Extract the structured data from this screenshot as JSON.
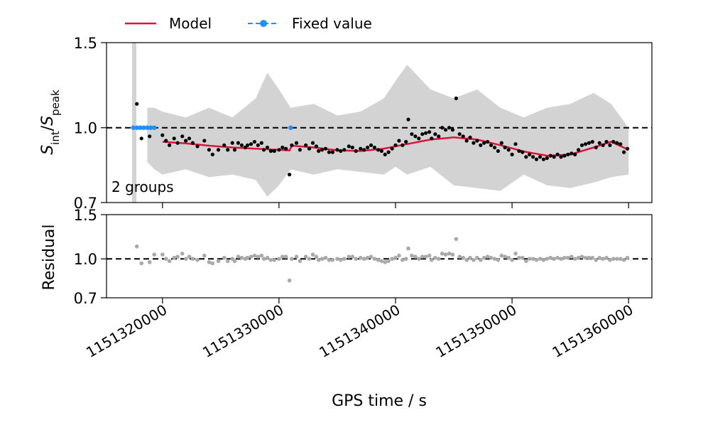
{
  "chart_data": [
    {
      "type": "scatter",
      "panel": "top",
      "title": "",
      "xlabel": "",
      "ylabel": "S_int/S_peak",
      "ylabel_parts": {
        "s1": "S",
        "sub1": "int",
        "slash": "/",
        "s2": "S",
        "sub2": "peak"
      },
      "yscale": "log",
      "ylim": [
        0.7,
        1.5
      ],
      "xlim": [
        1151315200,
        1151362000
      ],
      "yticks": [
        0.7,
        1.0,
        1.5
      ],
      "ytick_labels": [
        "0.7",
        "1.0",
        "1.5"
      ],
      "reference_line": 1.0,
      "annotation": "2 groups",
      "legend": {
        "placement": "top",
        "entries": [
          "Model",
          "Fixed value"
        ]
      },
      "colors": {
        "points": "#000000",
        "model": "#dc143c",
        "fixed": "#1e90ff",
        "band": "#d3d3d3"
      },
      "fixed_value": {
        "x": [
          1151317500,
          1151317800,
          1151318100,
          1151318400,
          1151318700,
          1151319000,
          1151319300,
          1151331000
        ],
        "y": [
          1.0,
          1.0,
          1.0,
          1.0,
          1.0,
          1.0,
          1.0,
          1.0
        ]
      },
      "model": {
        "x": [
          1151320000,
          1151322000,
          1151324000,
          1151326000,
          1151328000,
          1151330000,
          1151330900,
          1151331100,
          1151333000,
          1151335000,
          1151337000,
          1151339000,
          1151341000,
          1151343000,
          1151345000,
          1151347000,
          1151349000,
          1151351000,
          1151353000,
          1151355000,
          1151357000,
          1151358500,
          1151360000
        ],
        "y": [
          0.935,
          0.928,
          0.918,
          0.91,
          0.905,
          0.9,
          0.897,
          0.918,
          0.91,
          0.898,
          0.895,
          0.905,
          0.925,
          0.945,
          0.955,
          0.945,
          0.92,
          0.893,
          0.875,
          0.88,
          0.91,
          0.935,
          0.9
        ]
      },
      "band": {
        "x": [
          1151318700,
          1151319300,
          1151320000,
          1151322000,
          1151324000,
          1151326000,
          1151328000,
          1151329000,
          1151330000,
          1151331000,
          1151333000,
          1151335000,
          1151337000,
          1151339000,
          1151340000,
          1151341000,
          1151343000,
          1151345000,
          1151347000,
          1151349000,
          1151351000,
          1151353000,
          1151355000,
          1151357000,
          1151358500,
          1151360000
        ],
        "upper": [
          1.1,
          1.1,
          1.08,
          1.05,
          1.1,
          1.05,
          1.15,
          1.3,
          1.2,
          1.1,
          1.12,
          1.06,
          1.08,
          1.15,
          1.25,
          1.35,
          1.2,
          1.15,
          1.2,
          1.1,
          1.05,
          1.1,
          1.12,
          1.18,
          1.12,
          1.0
        ],
        "lower": [
          0.85,
          0.82,
          0.8,
          0.82,
          0.79,
          0.8,
          0.78,
          0.72,
          0.76,
          0.82,
          0.8,
          0.82,
          0.81,
          0.8,
          0.83,
          0.8,
          0.83,
          0.76,
          0.75,
          0.74,
          0.8,
          0.76,
          0.75,
          0.77,
          0.79,
          0.8
        ]
      },
      "series": [
        {
          "name": "data",
          "x": [
            1151317800,
            1151318200,
            1151318900,
            1151319300,
            1151320000,
            1151320300,
            1151320600,
            1151321000,
            1151321300,
            1151321700,
            1151322000,
            1151322300,
            1151322600,
            1151323000,
            1151323600,
            1151324000,
            1151324300,
            1151324800,
            1151325300,
            1151325600,
            1151326000,
            1151326200,
            1151326500,
            1151326800,
            1151327100,
            1151327300,
            1151327600,
            1151327900,
            1151328200,
            1151328500,
            1151328700,
            1151329000,
            1151329300,
            1151329600,
            1151330000,
            1151330300,
            1151330600,
            1151330900,
            1151331100,
            1151331500,
            1151331800,
            1151332300,
            1151332600,
            1151332900,
            1151333200,
            1151333400,
            1151333700,
            1151334000,
            1151334300,
            1151334600,
            1151335000,
            1151335300,
            1151335600,
            1151336000,
            1151336300,
            1151336600,
            1151337000,
            1151337300,
            1151337600,
            1151337900,
            1151338200,
            1151338500,
            1151338800,
            1151339100,
            1151339400,
            1151339700,
            1151340000,
            1151340300,
            1151340600,
            1151340900,
            1151341100,
            1151341400,
            1151341700,
            1151342000,
            1151342300,
            1151342600,
            1151342900,
            1151343100,
            1151343400,
            1151343700,
            1151344000,
            1151344300,
            1151344600,
            1151344900,
            1151345200,
            1151345500,
            1151345800,
            1151346100,
            1151346400,
            1151346700,
            1151347000,
            1151347300,
            1151347600,
            1151347900,
            1151348200,
            1151348500,
            1151348800,
            1151349100,
            1151349400,
            1151349700,
            1151350000,
            1151350300,
            1151350600,
            1151350900,
            1151351200,
            1151351500,
            1151351800,
            1151352100,
            1151352400,
            1151352700,
            1151353000,
            1151353300,
            1151353600,
            1151353900,
            1151354200,
            1151354500,
            1151354800,
            1151355100,
            1151355400,
            1151355700,
            1151356000,
            1151356300,
            1151356600,
            1151356900,
            1151357200,
            1151357500,
            1151357800,
            1151358100,
            1151358400,
            1151358700,
            1151359000,
            1151359300,
            1151359600,
            1151359900
          ],
          "y": [
            1.12,
            0.95,
            0.96,
            1.0,
            0.965,
            0.94,
            0.92,
            0.95,
            0.93,
            0.96,
            0.94,
            0.95,
            0.93,
            0.915,
            0.94,
            0.9,
            0.88,
            0.9,
            0.92,
            0.9,
            0.93,
            0.9,
            0.93,
            0.92,
            0.91,
            0.92,
            0.925,
            0.935,
            0.92,
            0.93,
            0.9,
            0.91,
            0.895,
            0.895,
            0.9,
            0.91,
            0.905,
            0.8,
            0.92,
            0.93,
            0.9,
            0.92,
            0.905,
            0.93,
            0.915,
            0.895,
            0.9,
            0.905,
            0.89,
            0.89,
            0.9,
            0.895,
            0.9,
            0.915,
            0.91,
            0.895,
            0.905,
            0.9,
            0.91,
            0.92,
            0.91,
            0.9,
            0.895,
            0.88,
            0.89,
            0.905,
            0.92,
            0.94,
            0.92,
            0.935,
            1.04,
            0.97,
            0.96,
            0.95,
            0.97,
            0.975,
            0.98,
            0.95,
            0.97,
            0.96,
            1.0,
            0.99,
            1.0,
            0.99,
            1.15,
            0.97,
            0.96,
            0.94,
            0.955,
            0.93,
            0.94,
            0.92,
            0.93,
            0.935,
            0.92,
            0.91,
            0.895,
            0.93,
            0.91,
            0.9,
            0.88,
            0.925,
            0.895,
            0.89,
            0.87,
            0.88,
            0.87,
            0.86,
            0.87,
            0.86,
            0.865,
            0.875,
            0.87,
            0.88,
            0.87,
            0.875,
            0.88,
            0.885,
            0.88,
            0.9,
            0.92,
            0.925,
            0.93,
            0.935,
            0.91,
            0.93,
            0.92,
            0.935,
            0.92,
            0.935,
            0.93,
            0.925,
            0.89,
            0.905
          ]
        }
      ]
    },
    {
      "type": "scatter",
      "panel": "bottom",
      "title": "",
      "xlabel": "GPS time / s",
      "ylabel": "Residual",
      "yscale": "log",
      "ylim": [
        0.7,
        1.5
      ],
      "xlim": [
        1151315200,
        1151362000
      ],
      "yticks": [
        0.7,
        1.0,
        1.5
      ],
      "ytick_labels": [
        "0.7",
        "1.0",
        "1.5"
      ],
      "xticks": [
        1151320000,
        1151330000,
        1151340000,
        1151350000,
        1151360000
      ],
      "xtick_labels": [
        "1151320000",
        "1151330000",
        "1151340000",
        "1151350000",
        "1151360000"
      ],
      "reference_line": 1.0,
      "colors": {
        "points": "#a9a9a9"
      },
      "series": [
        {
          "name": "residual",
          "x": [
            1151317800,
            1151318200,
            1151318900,
            1151319300,
            1151320000,
            1151320300,
            1151320600,
            1151321000,
            1151321300,
            1151321700,
            1151322000,
            1151322300,
            1151322600,
            1151323000,
            1151323600,
            1151324000,
            1151324300,
            1151324800,
            1151325300,
            1151325600,
            1151326000,
            1151326200,
            1151326500,
            1151326800,
            1151327100,
            1151327300,
            1151327600,
            1151327900,
            1151328200,
            1151328500,
            1151328700,
            1151329000,
            1151329300,
            1151329600,
            1151330000,
            1151330300,
            1151330600,
            1151330900,
            1151331100,
            1151331500,
            1151331800,
            1151332300,
            1151332600,
            1151332900,
            1151333200,
            1151333400,
            1151333700,
            1151334000,
            1151334300,
            1151334600,
            1151335000,
            1151335300,
            1151335600,
            1151336000,
            1151336300,
            1151336600,
            1151337000,
            1151337300,
            1151337600,
            1151337900,
            1151338200,
            1151338500,
            1151338800,
            1151339100,
            1151339400,
            1151339700,
            1151340000,
            1151340300,
            1151340600,
            1151340900,
            1151341100,
            1151341400,
            1151341700,
            1151342000,
            1151342300,
            1151342600,
            1151342900,
            1151343100,
            1151343400,
            1151343700,
            1151344000,
            1151344300,
            1151344600,
            1151344900,
            1151345200,
            1151345500,
            1151345800,
            1151346100,
            1151346400,
            1151346700,
            1151347000,
            1151347300,
            1151347600,
            1151347900,
            1151348200,
            1151348500,
            1151348800,
            1151349100,
            1151349400,
            1151349700,
            1151350000,
            1151350300,
            1151350600,
            1151350900,
            1151351200,
            1151351500,
            1151351800,
            1151352100,
            1151352400,
            1151352700,
            1151353000,
            1151353300,
            1151353600,
            1151353900,
            1151354200,
            1151354500,
            1151354800,
            1151355100,
            1151355400,
            1151355700,
            1151356000,
            1151356300,
            1151356600,
            1151356900,
            1151357200,
            1151357500,
            1151357800,
            1151358100,
            1151358400,
            1151358700,
            1151359000,
            1151359300,
            1151359600,
            1151359900
          ],
          "y": [
            1.12,
            0.96,
            0.97,
            1.04,
            1.04,
            1.0,
            0.98,
            1.01,
            1.02,
            1.05,
            1.0,
            1.02,
            1.0,
            0.99,
            1.03,
            0.97,
            0.96,
            0.98,
            1.01,
            0.98,
            1.0,
            0.98,
            1.02,
            1.01,
            1.0,
            1.01,
            1.02,
            1.03,
            1.02,
            1.03,
            1.0,
            1.01,
            0.99,
            0.99,
            1.0,
            1.02,
            1.02,
            0.82,
            1.0,
            1.02,
            0.98,
            1.02,
            1.0,
            1.04,
            1.02,
            0.99,
            1.0,
            1.01,
            0.99,
            0.99,
            1.0,
            0.99,
            1.0,
            1.02,
            1.02,
            1.0,
            1.01,
            1.0,
            1.01,
            1.02,
            1.0,
            0.99,
            0.98,
            0.97,
            0.98,
            1.0,
            1.01,
            1.03,
            0.99,
            1.0,
            1.1,
            1.03,
            1.02,
            1.0,
            1.02,
            1.02,
            1.03,
            0.99,
            1.01,
            1.0,
            1.05,
            1.04,
            1.05,
            1.04,
            1.2,
            1.02,
            1.01,
            0.99,
            1.01,
            0.99,
            1.01,
            0.99,
            1.01,
            1.02,
            1.01,
            1.0,
            0.99,
            1.03,
            1.02,
            1.01,
            0.99,
            1.05,
            1.01,
            1.01,
            0.98,
            1.0,
            1.0,
            0.99,
            1.0,
            0.99,
            1.0,
            1.01,
            1.0,
            1.01,
            1.0,
            1.01,
            1.01,
            1.02,
            1.0,
            1.01,
            1.02,
            1.01,
            1.01,
            1.01,
            0.99,
            1.01,
            1.0,
            1.01,
            0.99,
            1.0,
            1.0,
            1.0,
            0.99,
            1.01
          ]
        }
      ]
    }
  ]
}
